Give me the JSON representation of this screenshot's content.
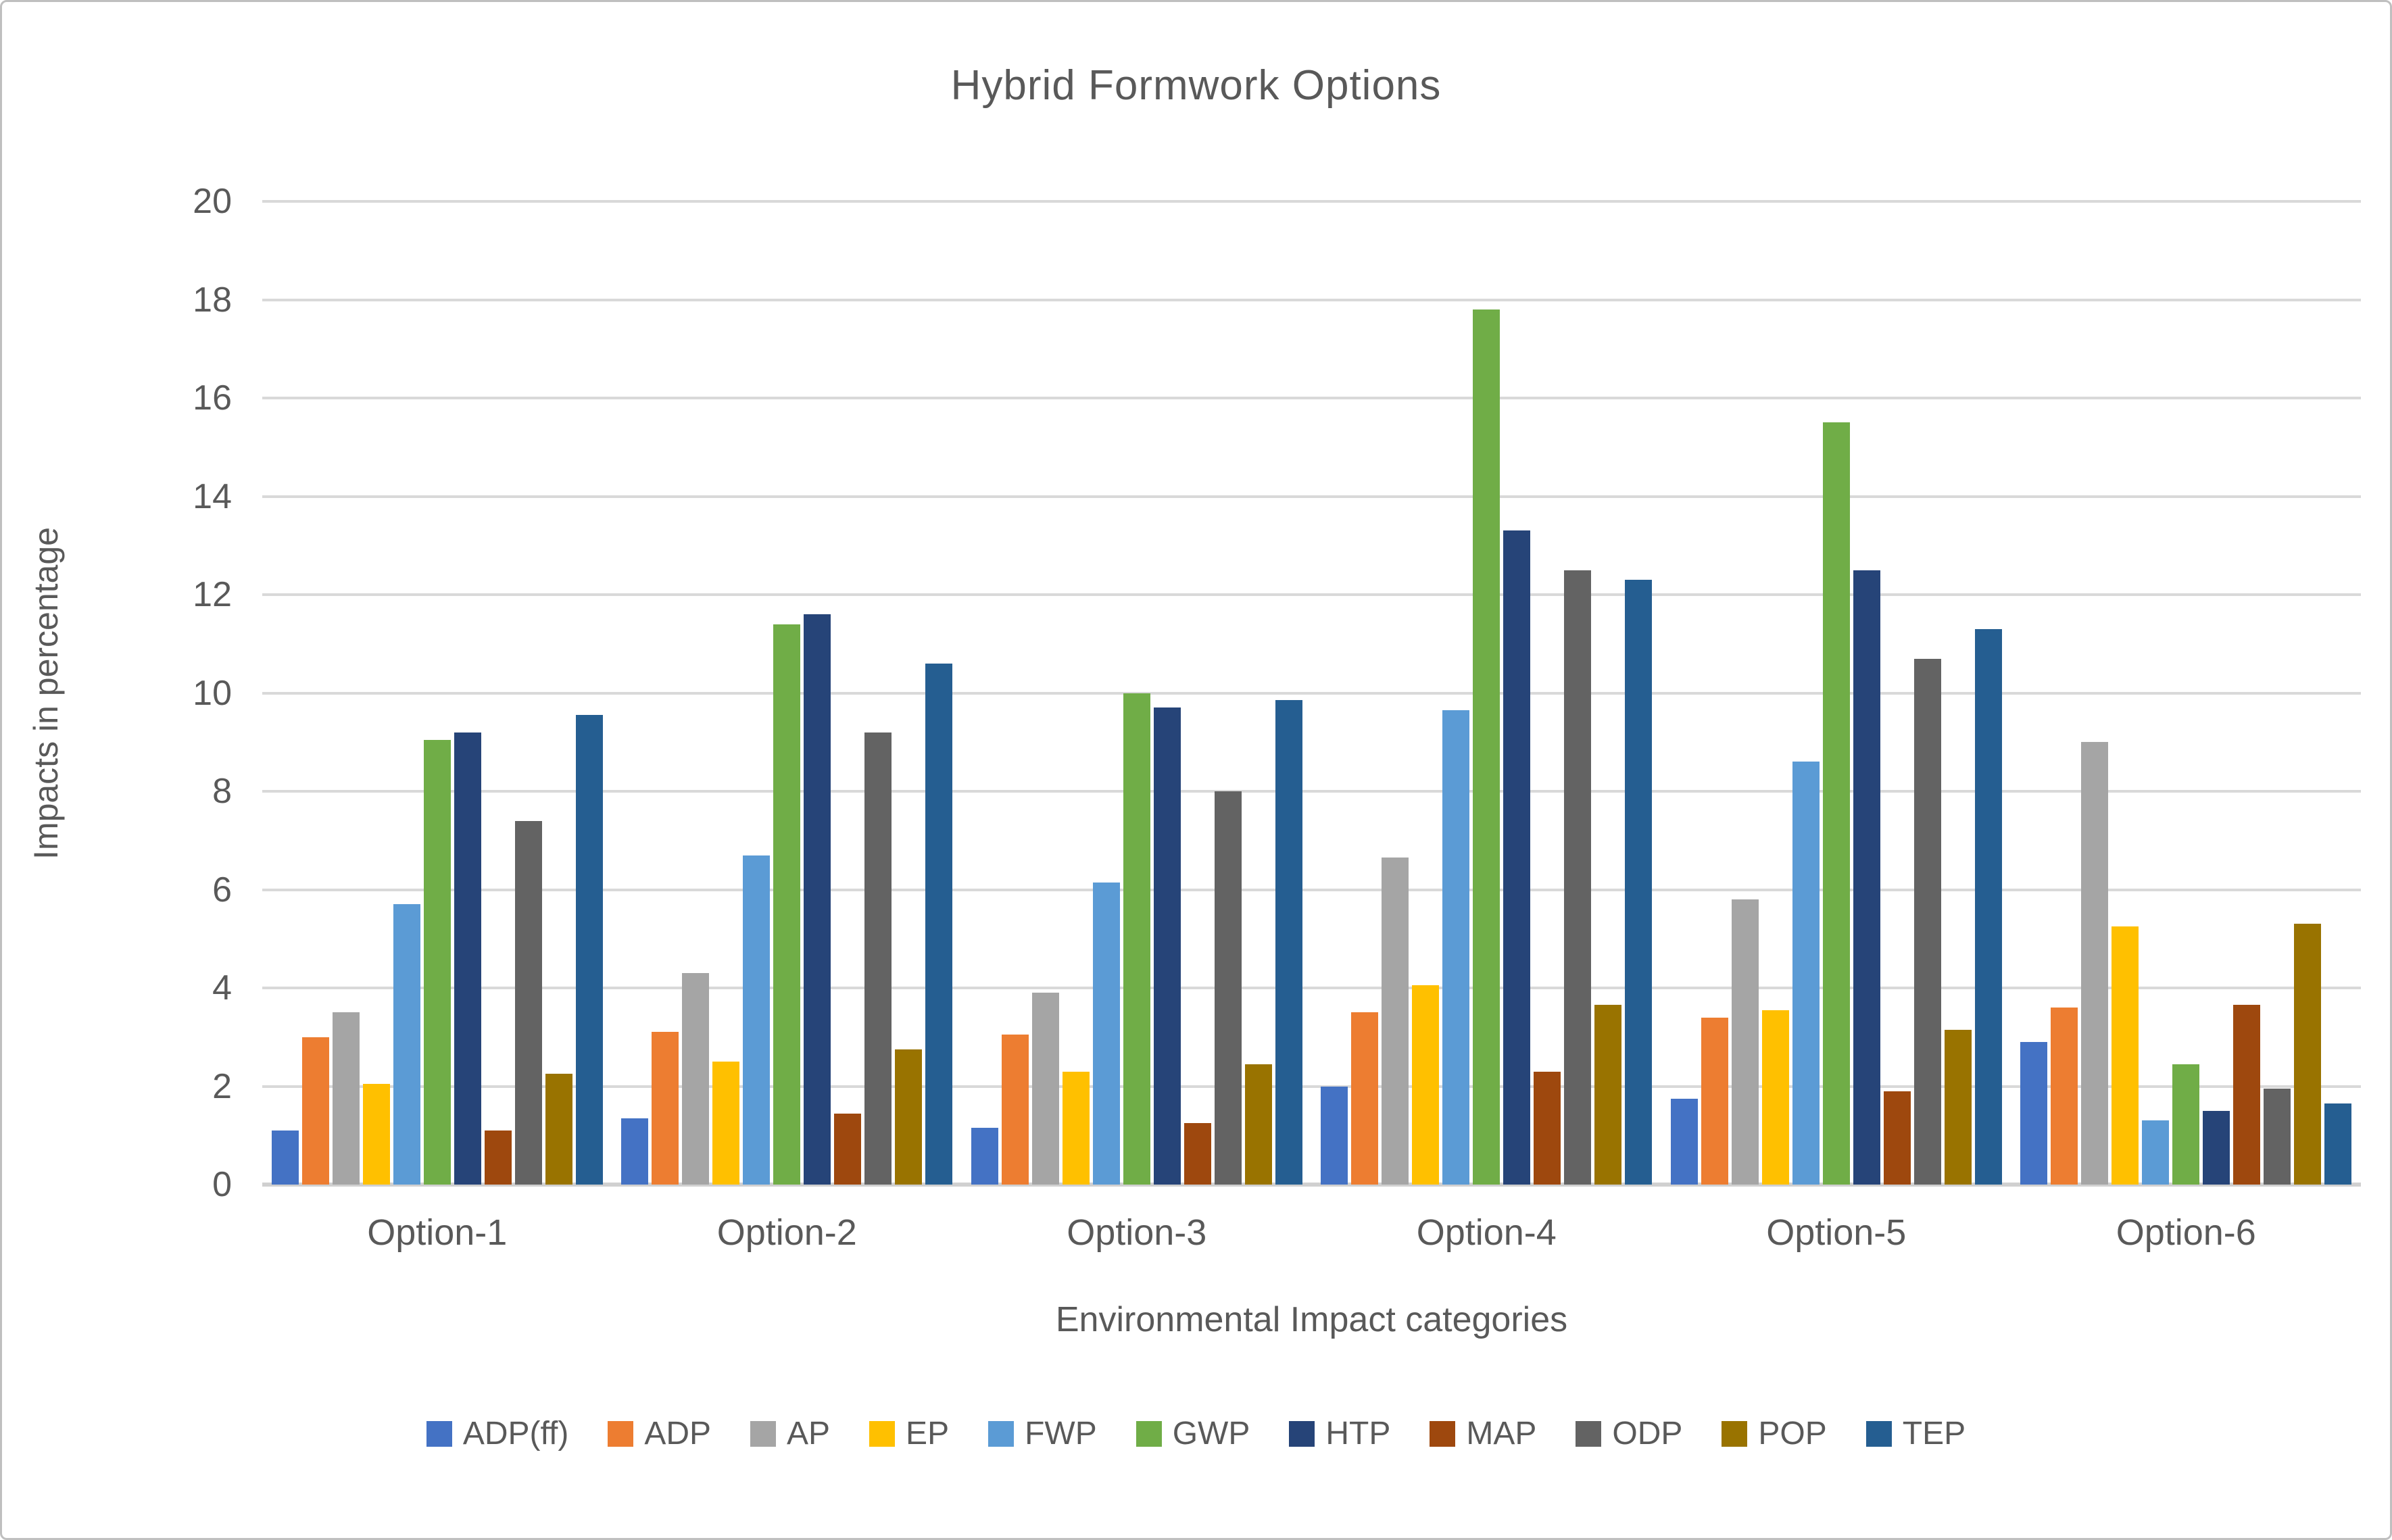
{
  "title": "Hybrid Formwork Options",
  "colors": {
    "text": "#595959",
    "gridline": "#d9d9d9",
    "axis_line": "#d0d0d0",
    "frame_border": "#bfbfbf",
    "background": "#ffffff"
  },
  "chart_data": {
    "type": "bar",
    "title": "Hybrid Formwork Options",
    "xlabel": "Environmental Impact categories",
    "ylabel": "Impacts in percentage",
    "ylim": [
      0,
      20
    ],
    "yticks": [
      0,
      2,
      4,
      6,
      8,
      10,
      12,
      14,
      16,
      18,
      20
    ],
    "grid": true,
    "legend_position": "bottom",
    "categories": [
      "Option-1",
      "Option-2",
      "Option-3",
      "Option-4",
      "Option-5",
      "Option-6"
    ],
    "series": [
      {
        "name": "ADP(ff)",
        "color": "#4472C4",
        "values": [
          1.1,
          1.35,
          1.15,
          2.0,
          1.75,
          2.9
        ]
      },
      {
        "name": "ADP",
        "color": "#ED7D31",
        "values": [
          3.0,
          3.1,
          3.05,
          3.5,
          3.4,
          3.6
        ]
      },
      {
        "name": "AP",
        "color": "#A5A5A5",
        "values": [
          3.5,
          4.3,
          3.9,
          6.65,
          5.8,
          9.0
        ]
      },
      {
        "name": "EP",
        "color": "#FFC000",
        "values": [
          2.05,
          2.5,
          2.3,
          4.05,
          3.55,
          5.25
        ]
      },
      {
        "name": "FWP",
        "color": "#5B9BD5",
        "values": [
          5.7,
          6.7,
          6.15,
          9.65,
          8.6,
          1.3
        ]
      },
      {
        "name": "GWP",
        "color": "#70AD47",
        "values": [
          9.05,
          11.4,
          10.0,
          17.8,
          15.5,
          2.45
        ]
      },
      {
        "name": "HTP",
        "color": "#264478",
        "values": [
          9.2,
          11.6,
          9.7,
          13.3,
          12.5,
          1.5
        ]
      },
      {
        "name": "MAP",
        "color": "#9E480E",
        "values": [
          1.1,
          1.45,
          1.25,
          2.3,
          1.9,
          3.65
        ]
      },
      {
        "name": "ODP",
        "color": "#636363",
        "values": [
          7.4,
          9.2,
          8.0,
          12.5,
          10.7,
          1.95
        ]
      },
      {
        "name": "POP",
        "color": "#997300",
        "values": [
          2.25,
          2.75,
          2.45,
          3.65,
          3.15,
          5.3
        ]
      },
      {
        "name": "TEP",
        "color": "#255E91",
        "values": [
          9.55,
          10.6,
          9.85,
          12.3,
          11.3,
          1.65
        ]
      }
    ]
  }
}
